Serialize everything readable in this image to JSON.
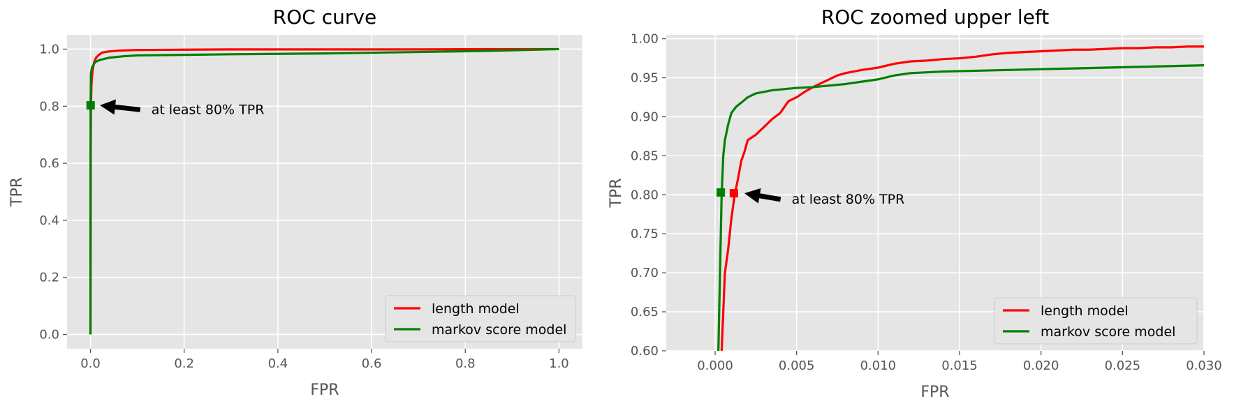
{
  "colors": {
    "plot_bg": "#e5e5e5",
    "grid": "#ffffff",
    "length_model": "#ff0000",
    "markov_model": "#008000",
    "arrow": "#000000"
  },
  "chart_data": [
    {
      "type": "line",
      "title": "ROC curve",
      "xlabel": "FPR",
      "ylabel": "TPR",
      "xlim": [
        -0.05,
        1.05
      ],
      "ylim": [
        -0.05,
        1.05
      ],
      "xticks": [
        0.0,
        0.2,
        0.4,
        0.6,
        0.8,
        1.0
      ],
      "yticks": [
        0.0,
        0.2,
        0.4,
        0.6,
        0.8,
        1.0
      ],
      "xtick_labels": [
        "0.0",
        "0.2",
        "0.4",
        "0.6",
        "0.8",
        "1.0"
      ],
      "ytick_labels": [
        "0.0",
        "0.2",
        "0.4",
        "0.6",
        "0.8",
        "1.0"
      ],
      "grid": true,
      "legend_position": "lower-right",
      "series": [
        {
          "name": "length model",
          "color": "#ff0000",
          "x": [
            0.0,
            0.0005,
            0.001,
            0.002,
            0.003,
            0.005,
            0.008,
            0.012,
            0.018,
            0.025,
            0.04,
            0.06,
            0.1,
            0.2,
            0.3,
            0.5,
            0.7,
            0.85,
            0.95,
            1.0
          ],
          "y": [
            0.0,
            0.6,
            0.8,
            0.87,
            0.9,
            0.93,
            0.955,
            0.97,
            0.98,
            0.988,
            0.992,
            0.995,
            0.997,
            0.998,
            0.999,
            0.999,
            0.999,
            1.0,
            1.0,
            1.0
          ]
        },
        {
          "name": "markov score model",
          "color": "#008000",
          "x": [
            0.0,
            0.0003,
            0.001,
            0.003,
            0.01,
            0.02,
            0.04,
            0.07,
            0.1,
            0.2,
            0.3,
            0.5,
            0.7,
            0.85,
            0.95,
            1.0
          ],
          "y": [
            0.0,
            0.8,
            0.915,
            0.935,
            0.955,
            0.962,
            0.97,
            0.975,
            0.978,
            0.98,
            0.982,
            0.985,
            0.99,
            0.994,
            0.998,
            1.0
          ]
        }
      ],
      "markers": [
        {
          "series": "markov score model",
          "x": 0.0003,
          "y": 0.803,
          "color": "#008000"
        }
      ],
      "annotation": {
        "text": "at least 80% TPR",
        "x": 0.13,
        "y": 0.79,
        "arrow_to": [
          0.02,
          0.803
        ]
      }
    },
    {
      "type": "line",
      "title": "ROC zoomed upper left",
      "xlabel": "FPR",
      "ylabel": "TPR",
      "xlim": [
        -0.003,
        0.03
      ],
      "ylim": [
        0.6,
        1.005
      ],
      "xticks": [
        0.0,
        0.005,
        0.01,
        0.015,
        0.02,
        0.025,
        0.03
      ],
      "yticks": [
        0.6,
        0.65,
        0.7,
        0.75,
        0.8,
        0.85,
        0.9,
        0.95,
        1.0
      ],
      "xtick_labels": [
        "0.000",
        "0.005",
        "0.010",
        "0.015",
        "0.020",
        "0.025",
        "0.030"
      ],
      "ytick_labels": [
        "0.60",
        "0.65",
        "0.70",
        "0.75",
        "0.80",
        "0.85",
        "0.90",
        "0.95",
        "1.00"
      ],
      "grid": true,
      "legend_position": "lower-right",
      "series": [
        {
          "name": "length model",
          "color": "#ff0000",
          "x": [
            0.0004,
            0.0005,
            0.0006,
            0.0008,
            0.001,
            0.0012,
            0.0014,
            0.0016,
            0.0018,
            0.002,
            0.0025,
            0.003,
            0.0035,
            0.004,
            0.0045,
            0.005,
            0.0055,
            0.006,
            0.0065,
            0.007,
            0.0075,
            0.008,
            0.0085,
            0.009,
            0.01,
            0.011,
            0.012,
            0.013,
            0.014,
            0.015,
            0.016,
            0.017,
            0.018,
            0.019,
            0.02,
            0.021,
            0.022,
            0.023,
            0.024,
            0.025,
            0.026,
            0.027,
            0.028,
            0.029,
            0.03
          ],
          "y": [
            0.6,
            0.65,
            0.7,
            0.73,
            0.77,
            0.8,
            0.82,
            0.843,
            0.855,
            0.87,
            0.877,
            0.887,
            0.897,
            0.905,
            0.92,
            0.925,
            0.932,
            0.938,
            0.943,
            0.948,
            0.953,
            0.956,
            0.958,
            0.96,
            0.963,
            0.968,
            0.971,
            0.972,
            0.974,
            0.975,
            0.977,
            0.98,
            0.982,
            0.983,
            0.984,
            0.985,
            0.986,
            0.986,
            0.987,
            0.988,
            0.988,
            0.989,
            0.989,
            0.99,
            0.99
          ]
        },
        {
          "name": "markov score model",
          "color": "#008000",
          "x": [
            0.0002,
            0.0003,
            0.0004,
            0.0005,
            0.0006,
            0.0008,
            0.001,
            0.0013,
            0.0016,
            0.002,
            0.0025,
            0.003,
            0.0035,
            0.004,
            0.005,
            0.006,
            0.007,
            0.008,
            0.009,
            0.01,
            0.011,
            0.012,
            0.014,
            0.016,
            0.018,
            0.02,
            0.022,
            0.024,
            0.026,
            0.028,
            0.03
          ],
          "y": [
            0.6,
            0.7,
            0.8,
            0.85,
            0.87,
            0.89,
            0.905,
            0.913,
            0.918,
            0.925,
            0.93,
            0.932,
            0.934,
            0.935,
            0.937,
            0.938,
            0.94,
            0.942,
            0.945,
            0.948,
            0.953,
            0.956,
            0.958,
            0.959,
            0.96,
            0.961,
            0.962,
            0.963,
            0.964,
            0.965,
            0.966
          ]
        }
      ],
      "markers": [
        {
          "series": "markov score model",
          "x": 0.00035,
          "y": 0.803,
          "color": "#008000"
        },
        {
          "series": "length model",
          "x": 0.00115,
          "y": 0.802,
          "color": "#ff0000"
        }
      ],
      "annotation": {
        "text": "at least 80% TPR",
        "x": 0.0047,
        "y": 0.795,
        "arrow_to": [
          0.0018,
          0.802
        ]
      }
    }
  ]
}
